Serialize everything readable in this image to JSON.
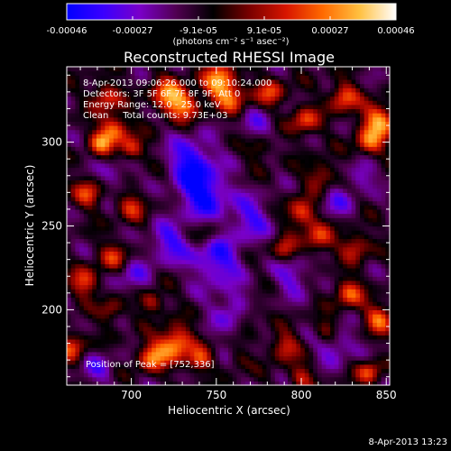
{
  "colorbar": {
    "tick_labels": [
      "-0.00046",
      "-0.00027",
      "-9.1e-05",
      "9.1e-05",
      "0.00027",
      "0.00046"
    ],
    "units_label": "(photons cm⁻² s⁻¹ asec⁻²)",
    "stops": [
      "#0000ff",
      "#3a00ff",
      "#7a00c8",
      "#500050",
      "#000000",
      "#7a0000",
      "#d81500",
      "#ff6a00",
      "#ffc040",
      "#ffffff"
    ]
  },
  "chart_data": {
    "type": "heatmap",
    "title": "Reconstructed RHESSI Image",
    "xlabel": "Heliocentric X (arcsec)",
    "ylabel": "Heliocentric Y (arcsec)",
    "xlim": [
      662,
      852
    ],
    "ylim": [
      155,
      345
    ],
    "xticks": [
      700,
      750,
      800,
      850
    ],
    "yticks": [
      200,
      250,
      300
    ],
    "colorscale_range": [
      -0.00046,
      0.00046
    ],
    "annotations": [
      "8-Apr-2013 09:06:26.000 to 09:10:24.000",
      "Detectors: 3F 5F 6F 7F 8F 9F, Att 0",
      "Energy Range: 12.0 - 25.0 keV",
      "Clean     Total counts: 9.73E+03"
    ],
    "peak_label": "Position of Peak = [752,336]",
    "blobs": [
      {
        "x": 752,
        "y": 336,
        "v": 0.00046,
        "r": 7
      },
      {
        "x": 722,
        "y": 328,
        "v": 0.0004,
        "r": 7
      },
      {
        "x": 732,
        "y": 322,
        "v": 0.0003,
        "r": 6
      },
      {
        "x": 685,
        "y": 327,
        "v": 0.0003,
        "r": 6
      },
      {
        "x": 690,
        "y": 308,
        "v": 0.00036,
        "r": 6
      },
      {
        "x": 682,
        "y": 300,
        "v": 0.00032,
        "r": 5
      },
      {
        "x": 700,
        "y": 296,
        "v": 0.0003,
        "r": 5
      },
      {
        "x": 675,
        "y": 270,
        "v": 0.00028,
        "r": 6
      },
      {
        "x": 700,
        "y": 262,
        "v": 0.00024,
        "r": 6
      },
      {
        "x": 690,
        "y": 232,
        "v": 0.00026,
        "r": 6
      },
      {
        "x": 673,
        "y": 217,
        "v": 0.0003,
        "r": 6
      },
      {
        "x": 688,
        "y": 200,
        "v": 0.00022,
        "r": 5
      },
      {
        "x": 712,
        "y": 205,
        "v": 0.00026,
        "r": 5
      },
      {
        "x": 726,
        "y": 180,
        "v": 0.00044,
        "r": 7
      },
      {
        "x": 712,
        "y": 172,
        "v": 0.00036,
        "r": 6
      },
      {
        "x": 740,
        "y": 170,
        "v": 0.0003,
        "r": 5
      },
      {
        "x": 760,
        "y": 325,
        "v": 0.00026,
        "r": 6
      },
      {
        "x": 782,
        "y": 330,
        "v": 0.00028,
        "r": 6
      },
      {
        "x": 802,
        "y": 313,
        "v": 0.0003,
        "r": 6
      },
      {
        "x": 825,
        "y": 327,
        "v": 0.00034,
        "r": 6
      },
      {
        "x": 846,
        "y": 313,
        "v": 0.00042,
        "r": 7
      },
      {
        "x": 840,
        "y": 300,
        "v": 0.0003,
        "r": 6
      },
      {
        "x": 812,
        "y": 280,
        "v": 0.00024,
        "r": 6
      },
      {
        "x": 800,
        "y": 258,
        "v": 0.00034,
        "r": 6
      },
      {
        "x": 810,
        "y": 243,
        "v": 0.0003,
        "r": 6
      },
      {
        "x": 790,
        "y": 236,
        "v": 0.00024,
        "r": 5
      },
      {
        "x": 832,
        "y": 238,
        "v": 0.00026,
        "r": 6
      },
      {
        "x": 828,
        "y": 210,
        "v": 0.00032,
        "r": 6
      },
      {
        "x": 846,
        "y": 195,
        "v": 0.00034,
        "r": 6
      },
      {
        "x": 815,
        "y": 188,
        "v": 0.00024,
        "r": 5
      },
      {
        "x": 790,
        "y": 178,
        "v": 0.00026,
        "r": 6
      },
      {
        "x": 770,
        "y": 198,
        "v": 0.0002,
        "r": 5
      },
      {
        "x": 762,
        "y": 170,
        "v": 0.00024,
        "r": 5
      },
      {
        "x": 800,
        "y": 160,
        "v": 0.00024,
        "r": 5
      },
      {
        "x": 840,
        "y": 163,
        "v": 0.0003,
        "r": 5
      },
      {
        "x": 665,
        "y": 178,
        "v": 0.00028,
        "r": 6
      },
      {
        "x": 776,
        "y": 297,
        "v": 0.00018,
        "r": 5
      },
      {
        "x": 745,
        "y": 245,
        "v": 0.00014,
        "r": 5
      },
      {
        "x": 735,
        "y": 290,
        "v": -0.0003,
        "r": 9
      },
      {
        "x": 742,
        "y": 270,
        "v": -0.00036,
        "r": 10
      },
      {
        "x": 750,
        "y": 230,
        "v": -0.00028,
        "r": 10
      },
      {
        "x": 770,
        "y": 255,
        "v": -0.00022,
        "r": 9
      },
      {
        "x": 722,
        "y": 240,
        "v": -0.00024,
        "r": 8
      },
      {
        "x": 760,
        "y": 200,
        "v": -0.0002,
        "r": 9
      },
      {
        "x": 795,
        "y": 220,
        "v": -0.00018,
        "r": 8
      },
      {
        "x": 820,
        "y": 180,
        "v": -0.0002,
        "r": 8
      },
      {
        "x": 700,
        "y": 220,
        "v": -0.00016,
        "r": 8
      },
      {
        "x": 690,
        "y": 280,
        "v": -0.00014,
        "r": 7
      },
      {
        "x": 775,
        "y": 310,
        "v": -0.00016,
        "r": 7
      },
      {
        "x": 820,
        "y": 265,
        "v": -0.00016,
        "r": 7
      },
      {
        "x": 835,
        "y": 280,
        "v": -0.00018,
        "r": 6
      },
      {
        "x": 760,
        "y": 170,
        "v": -0.00012,
        "r": 6
      },
      {
        "x": 680,
        "y": 165,
        "v": -0.00016,
        "r": 7
      }
    ]
  },
  "footer": {
    "timestamp": "8-Apr-2013 13:23"
  }
}
